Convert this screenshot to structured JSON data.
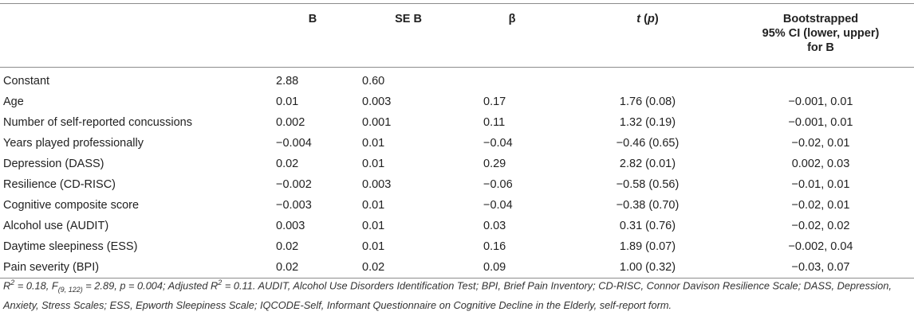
{
  "headers": {
    "b": "B",
    "se_b": "SE B",
    "beta": "β",
    "t_p_t": "t",
    "t_p_rest": " (",
    "t_p_p": "p",
    "t_p_close": ")",
    "ci_line1": "Bootstrapped",
    "ci_line2": "95% CI (lower, upper)",
    "ci_line3": "for B"
  },
  "rows": [
    {
      "label": "Constant",
      "b": "2.88",
      "se_b": "0.60",
      "beta": "",
      "t_p": "",
      "ci": ""
    },
    {
      "label": "Age",
      "b": "0.01",
      "se_b": "0.003",
      "beta": "0.17",
      "t_p": "1.76 (0.08)",
      "ci": "−0.001, 0.01"
    },
    {
      "label": "Number of self-reported concussions",
      "b": "0.002",
      "se_b": "0.001",
      "beta": "0.11",
      "t_p": "1.32 (0.19)",
      "ci": "−0.001, 0.01"
    },
    {
      "label": "Years played professionally",
      "b": "−0.004",
      "se_b": "0.01",
      "beta": "−0.04",
      "t_p": "−0.46 (0.65)",
      "ci": "−0.02, 0.01"
    },
    {
      "label": "Depression (DASS)",
      "b": "0.02",
      "se_b": "0.01",
      "beta": "0.29",
      "t_p": "2.82 (0.01)",
      "ci": "0.002, 0.03"
    },
    {
      "label": "Resilience (CD-RISC)",
      "b": "−0.002",
      "se_b": "0.003",
      "beta": "−0.06",
      "t_p": "−0.58 (0.56)",
      "ci": "−0.01, 0.01"
    },
    {
      "label": "Cognitive composite score",
      "b": "−0.003",
      "se_b": "0.01",
      "beta": "−0.04",
      "t_p": "−0.38 (0.70)",
      "ci": "−0.02, 0.01"
    },
    {
      "label": "Alcohol use (AUDIT)",
      "b": "0.003",
      "se_b": "0.01",
      "beta": "0.03",
      "t_p": "0.31 (0.76)",
      "ci": "−0.02, 0.02"
    },
    {
      "label": "Daytime sleepiness (ESS)",
      "b": "0.02",
      "se_b": "0.01",
      "beta": "0.16",
      "t_p": "1.89 (0.07)",
      "ci": "−0.002, 0.04"
    },
    {
      "label": "Pain severity (BPI)",
      "b": "0.02",
      "se_b": "0.02",
      "beta": "0.09",
      "t_p": "1.00 (0.32)",
      "ci": "−0.03, 0.07"
    }
  ],
  "note": {
    "r": "R",
    "r_sup": "2",
    "r_eq": " = 0.18, F",
    "f_sub": "(9, 122)",
    "f_rest": " = 2.89, p = 0.004; Adjusted R",
    "adj_sup": "2",
    "tail": " = 0.11. AUDIT, Alcohol Use Disorders Identification Test; BPI, Brief Pain Inventory; CD-RISC, Connor Davison Resilience Scale; DASS, Depression, Anxiety, Stress Scales; ESS, Epworth Sleepiness Scale; IQCODE-Self, Informant Questionnaire on Cognitive Decline in the Elderly, self-report form."
  }
}
